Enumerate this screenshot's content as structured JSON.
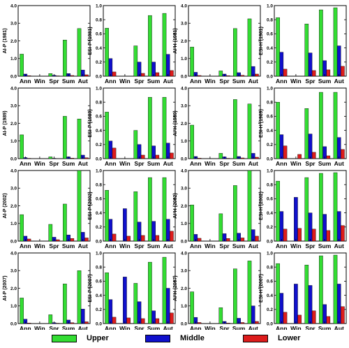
{
  "categories": [
    "Ann",
    "Win",
    "Spr",
    "Sum",
    "Aut"
  ],
  "legend": [
    {
      "name": "Upper",
      "color": "#33dd33"
    },
    {
      "name": "Middle",
      "color": "#1010cc"
    },
    {
      "name": "Lower",
      "color": "#dd1c1c"
    }
  ],
  "chart_data": [
    {
      "type": "bar",
      "ylabel": "AI-P (1981)",
      "ylim": [
        0,
        4
      ],
      "yticks": [
        "0.0",
        "1.0",
        "2.0",
        "3.0",
        "4.0"
      ],
      "categories": [
        "Ann",
        "Win",
        "Spr",
        "Sum",
        "Aut"
      ],
      "series": [
        {
          "name": "Upper",
          "values": [
            1.25,
            0.0,
            0.15,
            2.05,
            2.7
          ]
        },
        {
          "name": "Middle",
          "values": [
            0.12,
            0.0,
            0.05,
            0.15,
            0.35
          ]
        },
        {
          "name": "Lower",
          "values": [
            0.03,
            0.0,
            0.02,
            0.04,
            0.08
          ]
        }
      ]
    },
    {
      "type": "bar",
      "ylabel": "ESI-P (1981)",
      "ylim": [
        0,
        1
      ],
      "yticks": [
        "0.0",
        "0.2",
        "0.4",
        "0.6",
        "0.8",
        "1.0"
      ],
      "categories": [
        "Ann",
        "Win",
        "Spr",
        "Sum",
        "Aut"
      ],
      "series": [
        {
          "name": "Upper",
          "values": [
            0.68,
            0.0,
            0.43,
            0.86,
            0.89
          ]
        },
        {
          "name": "Middle",
          "values": [
            0.25,
            0.0,
            0.2,
            0.2,
            0.31
          ]
        },
        {
          "name": "Lower",
          "values": [
            0.06,
            0.0,
            0.04,
            0.05,
            0.08
          ]
        }
      ]
    },
    {
      "type": "bar",
      "ylabel": "AI-H (1981)",
      "ylim": [
        0,
        4
      ],
      "yticks": [
        "0.0",
        "1.0",
        "2.0",
        "3.0",
        "4.0"
      ],
      "categories": [
        "Ann",
        "Win",
        "Spr",
        "Sum",
        "Aut"
      ],
      "series": [
        {
          "name": "Upper",
          "values": [
            1.65,
            0.0,
            0.3,
            2.7,
            3.25
          ]
        },
        {
          "name": "Middle",
          "values": [
            0.22,
            0.0,
            0.12,
            0.2,
            0.55
          ]
        },
        {
          "name": "Lower",
          "values": [
            0.04,
            0.0,
            0.03,
            0.05,
            0.12
          ]
        }
      ]
    },
    {
      "type": "bar",
      "ylabel": "ESI-H (1981)",
      "ylim": [
        0,
        1
      ],
      "yticks": [
        "0.0",
        "0.2",
        "0.4",
        "0.6",
        "0.8",
        "1.0"
      ],
      "categories": [
        "Ann",
        "Win",
        "Spr",
        "Sum",
        "Aut"
      ],
      "series": [
        {
          "name": "Upper",
          "values": [
            0.83,
            0.0,
            0.74,
            0.94,
            0.97
          ]
        },
        {
          "name": "Middle",
          "values": [
            0.34,
            0.0,
            0.33,
            0.22,
            0.43
          ]
        },
        {
          "name": "Lower",
          "values": [
            0.1,
            0.0,
            0.08,
            0.09,
            0.14
          ]
        }
      ]
    },
    {
      "type": "bar",
      "ylabel": "AI-P (1989)",
      "ylim": [
        0,
        4
      ],
      "yticks": [
        "0.0",
        "1.0",
        "2.0",
        "3.0",
        "4.0"
      ],
      "categories": [
        "Ann",
        "Win",
        "Spr",
        "Sum",
        "Aut"
      ],
      "series": [
        {
          "name": "Upper",
          "values": [
            1.35,
            0.0,
            0.1,
            2.4,
            2.25
          ]
        },
        {
          "name": "Middle",
          "values": [
            0.06,
            0.0,
            0.02,
            0.1,
            0.2
          ]
        },
        {
          "name": "Lower",
          "values": [
            0.02,
            0.0,
            0.01,
            0.03,
            0.05
          ]
        }
      ]
    },
    {
      "type": "bar",
      "ylabel": "ESI-P (1989)",
      "ylim": [
        0,
        1
      ],
      "yticks": [
        "0.0",
        "0.2",
        "0.4",
        "0.6",
        "0.8",
        "1.0"
      ],
      "categories": [
        "Ann",
        "Win",
        "Spr",
        "Sum",
        "Aut"
      ],
      "series": [
        {
          "name": "Upper",
          "values": [
            0.66,
            0.0,
            0.4,
            0.87,
            0.87
          ]
        },
        {
          "name": "Middle",
          "values": [
            0.25,
            0.0,
            0.2,
            0.18,
            0.22
          ]
        },
        {
          "name": "Lower",
          "values": [
            0.15,
            0.0,
            0.05,
            0.05,
            0.08
          ]
        }
      ]
    },
    {
      "type": "bar",
      "ylabel": "AI-H (1989)",
      "ylim": [
        0,
        4
      ],
      "yticks": [
        "0.0",
        "1.0",
        "2.0",
        "3.0",
        "4.0"
      ],
      "categories": [
        "Ann",
        "Win",
        "Spr",
        "Sum",
        "Aut"
      ],
      "series": [
        {
          "name": "Upper",
          "values": [
            1.9,
            0.0,
            0.3,
            3.35,
            3.1
          ]
        },
        {
          "name": "Middle",
          "values": [
            0.12,
            0.0,
            0.1,
            0.12,
            0.3
          ]
        },
        {
          "name": "Lower",
          "values": [
            0.03,
            0.0,
            0.02,
            0.04,
            0.08
          ]
        }
      ]
    },
    {
      "type": "bar",
      "ylabel": "ESI-H (1989)",
      "ylim": [
        0,
        1
      ],
      "yticks": [
        "0.0",
        "0.2",
        "0.4",
        "0.6",
        "0.8",
        "1.0"
      ],
      "categories": [
        "Ann",
        "Win",
        "Spr",
        "Sum",
        "Aut"
      ],
      "series": [
        {
          "name": "Upper",
          "values": [
            0.8,
            0.0,
            0.71,
            0.94,
            0.94
          ]
        },
        {
          "name": "Middle",
          "values": [
            0.34,
            0.0,
            0.35,
            0.17,
            0.3
          ]
        },
        {
          "name": "Lower",
          "values": [
            0.18,
            0.06,
            0.09,
            0.04,
            0.13
          ]
        }
      ]
    },
    {
      "type": "bar",
      "ylabel": "AI-P (2002)",
      "ylim": [
        0,
        4
      ],
      "yticks": [
        "0.0",
        "1.0",
        "2.0",
        "3.0",
        "4.0"
      ],
      "categories": [
        "Ann",
        "Win",
        "Spr",
        "Sum",
        "Aut"
      ],
      "series": [
        {
          "name": "Upper",
          "values": [
            1.5,
            0.0,
            0.95,
            2.1,
            4.0
          ]
        },
        {
          "name": "Middle",
          "values": [
            0.28,
            0.0,
            0.22,
            0.35,
            0.5
          ]
        },
        {
          "name": "Lower",
          "values": [
            0.12,
            0.0,
            0.08,
            0.15,
            0.18
          ]
        }
      ]
    },
    {
      "type": "bar",
      "ylabel": "ESI-P (2002)",
      "ylim": [
        0,
        1
      ],
      "yticks": [
        "0.0",
        "0.2",
        "0.4",
        "0.6",
        "0.8",
        "1.0"
      ],
      "categories": [
        "Ann",
        "Win",
        "Spr",
        "Sum",
        "Aut"
      ],
      "series": [
        {
          "name": "Upper",
          "values": [
            0.72,
            0.0,
            0.7,
            0.9,
            0.9
          ]
        },
        {
          "name": "Middle",
          "values": [
            0.31,
            0.46,
            0.27,
            0.28,
            0.31
          ]
        },
        {
          "name": "Lower",
          "values": [
            0.1,
            0.07,
            0.08,
            0.08,
            0.14
          ]
        }
      ]
    },
    {
      "type": "bar",
      "ylabel": "AI-H (2002)",
      "ylim": [
        0,
        4
      ],
      "yticks": [
        "0.0",
        "1.0",
        "2.0",
        "3.0",
        "4.0"
      ],
      "categories": [
        "Ann",
        "Win",
        "Spr",
        "Sum",
        "Aut"
      ],
      "series": [
        {
          "name": "Upper",
          "values": [
            2.05,
            0.0,
            1.55,
            3.15,
            4.0
          ]
        },
        {
          "name": "Middle",
          "values": [
            0.38,
            0.0,
            0.42,
            0.45,
            0.65
          ]
        },
        {
          "name": "Lower",
          "values": [
            0.16,
            0.0,
            0.15,
            0.18,
            0.28
          ]
        }
      ]
    },
    {
      "type": "bar",
      "ylabel": "ESI-H (2002)",
      "ylim": [
        0,
        1
      ],
      "yticks": [
        "0.0",
        "0.2",
        "0.4",
        "0.6",
        "0.8",
        "1.0"
      ],
      "categories": [
        "Ann",
        "Win",
        "Spr",
        "Sum",
        "Aut"
      ],
      "series": [
        {
          "name": "Upper",
          "values": [
            0.85,
            0.0,
            0.9,
            0.96,
            0.97
          ]
        },
        {
          "name": "Middle",
          "values": [
            0.42,
            0.62,
            0.4,
            0.38,
            0.42
          ]
        },
        {
          "name": "Lower",
          "values": [
            0.17,
            0.18,
            0.17,
            0.15,
            0.22
          ]
        }
      ]
    },
    {
      "type": "bar",
      "ylabel": "AI-P (2007)",
      "ylim": [
        0,
        4
      ],
      "yticks": [
        "0.0",
        "1.0",
        "2.0",
        "3.0",
        "4.0"
      ],
      "categories": [
        "Ann",
        "Win",
        "Spr",
        "Sum",
        "Aut"
      ],
      "series": [
        {
          "name": "Upper",
          "values": [
            1.45,
            0.0,
            0.5,
            2.25,
            3.0
          ]
        },
        {
          "name": "Middle",
          "values": [
            0.25,
            0.0,
            0.05,
            0.2,
            0.82
          ]
        },
        {
          "name": "Lower",
          "values": [
            0.03,
            0.0,
            0.02,
            0.05,
            0.1
          ]
        }
      ]
    },
    {
      "type": "bar",
      "ylabel": "ESI-P (2007)",
      "ylim": [
        0,
        1
      ],
      "yticks": [
        "0.0",
        "0.2",
        "0.4",
        "0.6",
        "0.8",
        "1.0"
      ],
      "categories": [
        "Ann",
        "Win",
        "Spr",
        "Sum",
        "Aut"
      ],
      "series": [
        {
          "name": "Upper",
          "values": [
            0.72,
            0.0,
            0.57,
            0.87,
            0.94
          ]
        },
        {
          "name": "Middle",
          "values": [
            0.34,
            0.66,
            0.31,
            0.18,
            0.5
          ]
        },
        {
          "name": "Lower",
          "values": [
            0.09,
            0.08,
            0.07,
            0.07,
            0.15
          ]
        }
      ]
    },
    {
      "type": "bar",
      "ylabel": "AI-H (2007)",
      "ylim": [
        0,
        4
      ],
      "yticks": [
        "0.0",
        "1.0",
        "2.0",
        "3.0",
        "4.0"
      ],
      "categories": [
        "Ann",
        "Win",
        "Spr",
        "Sum",
        "Aut"
      ],
      "series": [
        {
          "name": "Upper",
          "values": [
            1.8,
            0.0,
            0.9,
            3.1,
            3.55
          ]
        },
        {
          "name": "Middle",
          "values": [
            0.35,
            0.0,
            0.12,
            0.3,
            1.0
          ]
        },
        {
          "name": "Lower",
          "values": [
            0.06,
            0.0,
            0.03,
            0.06,
            0.12
          ]
        }
      ]
    },
    {
      "type": "bar",
      "ylabel": "ESI-H (2007)",
      "ylim": [
        0,
        1
      ],
      "yticks": [
        "0.0",
        "0.2",
        "0.4",
        "0.6",
        "0.8",
        "1.0"
      ],
      "categories": [
        "Ann",
        "Win",
        "Spr",
        "Sum",
        "Aut"
      ],
      "series": [
        {
          "name": "Upper",
          "values": [
            0.85,
            0.0,
            0.83,
            0.96,
            0.97
          ]
        },
        {
          "name": "Middle",
          "values": [
            0.43,
            0.56,
            0.54,
            0.27,
            0.56
          ]
        },
        {
          "name": "Lower",
          "values": [
            0.16,
            0.12,
            0.18,
            0.1,
            0.24
          ]
        }
      ]
    }
  ]
}
